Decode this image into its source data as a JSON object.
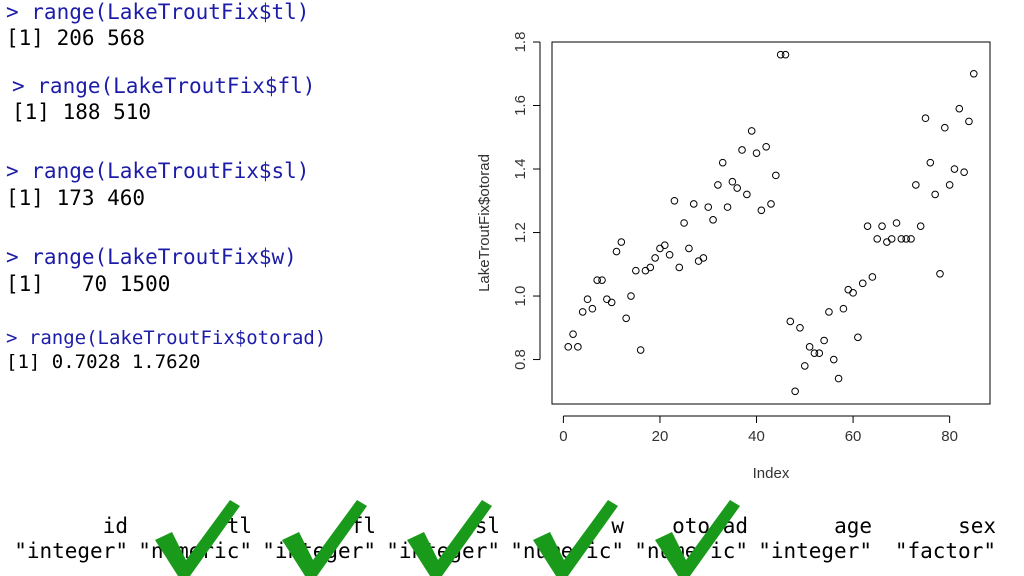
{
  "console": [
    {
      "command": "> range(LakeTroutFix$tl)",
      "output": "[1] 206 568"
    },
    {
      "command": "> range(LakeTroutFix$fl)",
      "output": "[1] 188 510"
    },
    {
      "command": "> range(LakeTroutFix$sl)",
      "output": "[1] 173 460"
    },
    {
      "command": "> range(LakeTroutFix$w)",
      "output": "[1]   70 1500"
    },
    {
      "command": "> range(LakeTroutFix$otorad)",
      "output": "[1] 0.7028 1.7620"
    }
  ],
  "columns": [
    {
      "name": "id",
      "type": "\"integer\""
    },
    {
      "name": "tl",
      "type": "\"numeric\""
    },
    {
      "name": "fl",
      "type": "\"integer\""
    },
    {
      "name": "sl",
      "type": "\"integer\""
    },
    {
      "name": "w",
      "type": "\"numeric\""
    },
    {
      "name": "otorad",
      "type": "\"numeric\""
    },
    {
      "name": "age",
      "type": "\"integer\""
    },
    {
      "name": "sex",
      "type": "\"factor\""
    }
  ],
  "chart_data": {
    "type": "scatter",
    "x_label": "Index",
    "y_label": "LakeTroutFix$otorad",
    "x": [
      1,
      2,
      3,
      4,
      5,
      6,
      7,
      8,
      9,
      10,
      11,
      12,
      13,
      14,
      15,
      16,
      17,
      18,
      19,
      20,
      21,
      22,
      23,
      24,
      25,
      26,
      27,
      28,
      29,
      30,
      31,
      32,
      33,
      34,
      35,
      36,
      37,
      38,
      39,
      40,
      41,
      42,
      43,
      44,
      45,
      46,
      47,
      48,
      49,
      50,
      51,
      52,
      53,
      54,
      55,
      56,
      57,
      58,
      59,
      60,
      61,
      62,
      63,
      64,
      65,
      66,
      67,
      68,
      69,
      70,
      71,
      72,
      73,
      74,
      75,
      76,
      77,
      78,
      79,
      80,
      81,
      82,
      83,
      84,
      85
    ],
    "values": [
      0.84,
      0.88,
      0.84,
      0.95,
      0.99,
      0.96,
      1.05,
      1.05,
      0.99,
      0.98,
      1.14,
      1.17,
      0.93,
      1.0,
      1.08,
      0.83,
      1.08,
      1.09,
      1.12,
      1.15,
      1.16,
      1.13,
      1.3,
      1.09,
      1.23,
      1.15,
      1.29,
      1.11,
      1.12,
      1.28,
      1.24,
      1.35,
      1.42,
      1.28,
      1.36,
      1.34,
      1.46,
      1.32,
      1.52,
      1.45,
      1.27,
      1.47,
      1.29,
      1.38,
      1.76,
      1.76,
      0.92,
      0.7,
      0.9,
      0.78,
      0.84,
      0.82,
      0.82,
      0.86,
      0.95,
      0.8,
      0.74,
      0.96,
      1.02,
      1.01,
      0.87,
      1.04,
      1.22,
      1.06,
      1.18,
      1.22,
      1.17,
      1.18,
      1.23,
      1.18,
      1.18,
      1.18,
      1.35,
      1.22,
      1.56,
      1.42,
      1.32,
      1.07,
      1.53,
      1.35,
      1.4,
      1.59,
      1.39,
      1.55,
      1.7
    ],
    "xlim": [
      -2.36,
      88.36
    ],
    "ylim": [
      0.66,
      1.8
    ],
    "xticks": [
      0,
      20,
      40,
      60,
      80
    ],
    "yticks": [
      0.8,
      {
        "value": 1.0,
        "label": "1.0"
      },
      1.2,
      1.4,
      1.6,
      1.8
    ],
    "color": "#000000"
  }
}
